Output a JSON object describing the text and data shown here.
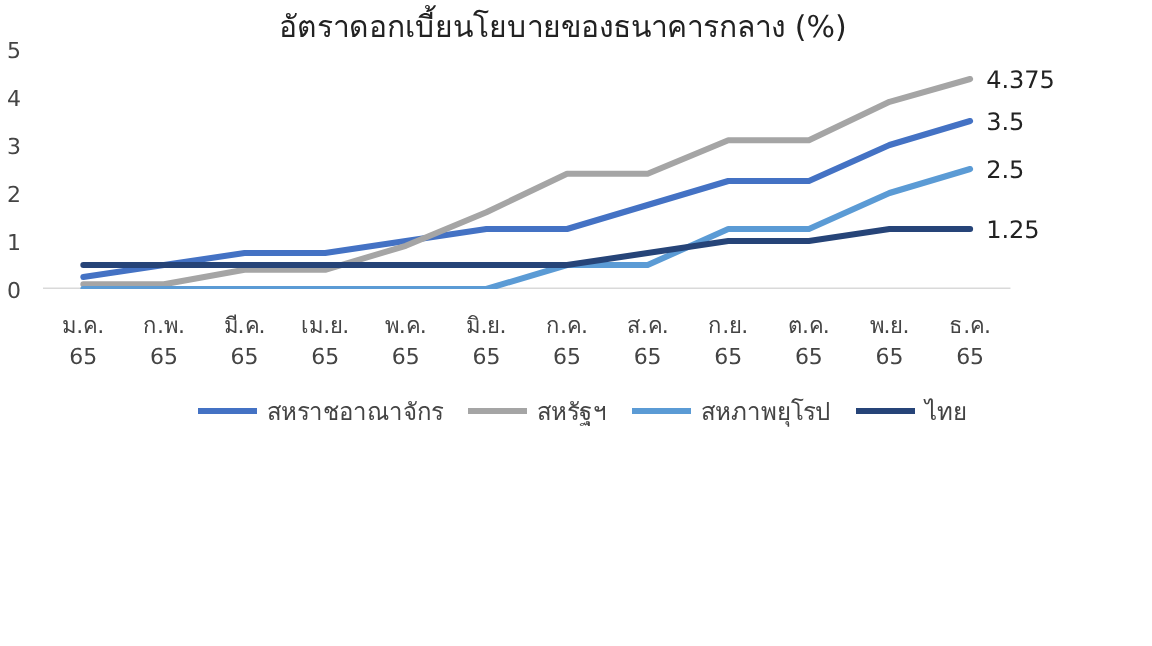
{
  "chart_data": {
    "type": "line",
    "title": "อัตราดอกเบี้ยนโยบายของธนาคารกลาง (%)",
    "categories": [
      "ม.ค. 65",
      "ก.พ. 65",
      "มี.ค. 65",
      "เม.ย. 65",
      "พ.ค. 65",
      "มิ.ย. 65",
      "ก.ค. 65",
      "ส.ค. 65",
      "ก.ย. 65",
      "ต.ค. 65",
      "พ.ย. 65",
      "ธ.ค. 65"
    ],
    "series": [
      {
        "name": "สหราชอาณาจักร",
        "color": "#4472c4",
        "values": [
          0.25,
          0.5,
          0.75,
          0.75,
          1.0,
          1.25,
          1.25,
          1.75,
          2.25,
          2.25,
          3.0,
          3.5
        ],
        "value_labels": [
          null,
          null,
          null,
          null,
          null,
          null,
          null,
          null,
          null,
          null,
          null,
          "3.5"
        ]
      },
      {
        "name": "สหรัฐฯ",
        "color": "#a5a5a5",
        "values": [
          0.1,
          0.1,
          0.4,
          0.4,
          0.9,
          1.6,
          2.4,
          2.4,
          3.1,
          3.1,
          3.9,
          4.375
        ],
        "value_labels": [
          null,
          null,
          null,
          null,
          null,
          null,
          null,
          null,
          null,
          null,
          null,
          "4.375"
        ]
      },
      {
        "name": "สหภาพยุโรป",
        "color": "#5b9bd5",
        "values": [
          0,
          0,
          0,
          0,
          0,
          0,
          0.5,
          0.5,
          1.25,
          1.25,
          2.0,
          2.5
        ],
        "value_labels": [
          null,
          null,
          null,
          null,
          null,
          null,
          null,
          null,
          null,
          null,
          null,
          "2.5"
        ]
      },
      {
        "name": "ไทย",
        "color": "#264478",
        "values": [
          0.5,
          0.5,
          0.5,
          0.5,
          0.5,
          0.5,
          0.5,
          0.75,
          1.0,
          1.0,
          1.25,
          1.25
        ],
        "value_labels": [
          null,
          null,
          null,
          null,
          null,
          null,
          null,
          null,
          null,
          null,
          null,
          "1.25"
        ]
      }
    ],
    "ylim": [
      0,
      5
    ],
    "yticks": [
      0,
      1,
      2,
      3,
      4,
      5
    ],
    "grid": false,
    "legend": "bottom",
    "line_style": "solid",
    "marker": "none"
  }
}
